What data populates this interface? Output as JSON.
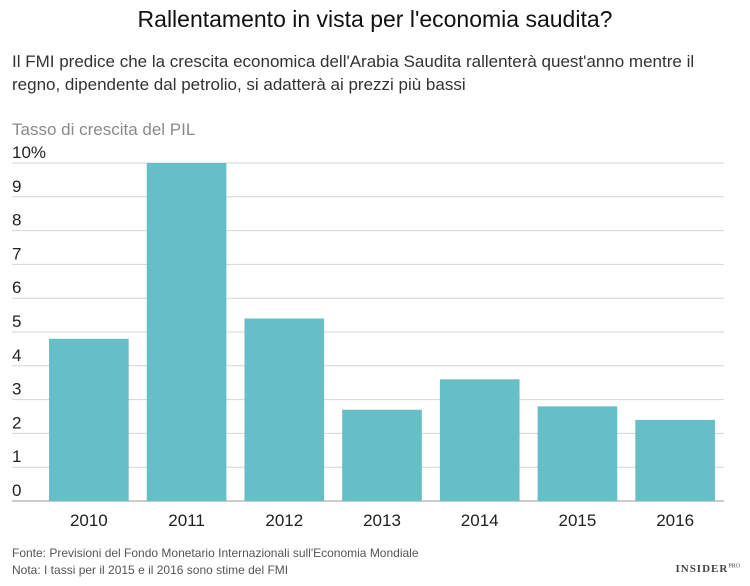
{
  "header": {
    "title": "Rallentamento in vista per l'economia saudita?",
    "subtitle": "Il FMI predice che la crescita economica dell'Arabia Saudita rallenterà quest'anno mentre il regno, dipendente dal petrolio, si adatterà ai prezzi più bassi"
  },
  "footer": {
    "source": "Fonte: Previsioni del Fondo Monetario Internazionali sull'Economia Mondiale",
    "note": "Nota: I tassi per il 2015 e il 2016 sono stime del FMI",
    "brand": "INSIDER",
    "brand_suffix": "PRO"
  },
  "chart_data": {
    "type": "bar",
    "ylabel": "Tasso di crescita del PIL",
    "categories": [
      "2010",
      "2011",
      "2012",
      "2013",
      "2014",
      "2015",
      "2016"
    ],
    "values": [
      4.8,
      10.0,
      5.4,
      2.7,
      3.6,
      2.8,
      2.4
    ],
    "ylim": [
      0,
      10
    ],
    "yticks": [
      "0",
      "1",
      "2",
      "3",
      "4",
      "5",
      "6",
      "7",
      "8",
      "9",
      "10%"
    ],
    "grid": true,
    "bar_color": "#66bec7",
    "grid_color": "#d5d5d5"
  }
}
